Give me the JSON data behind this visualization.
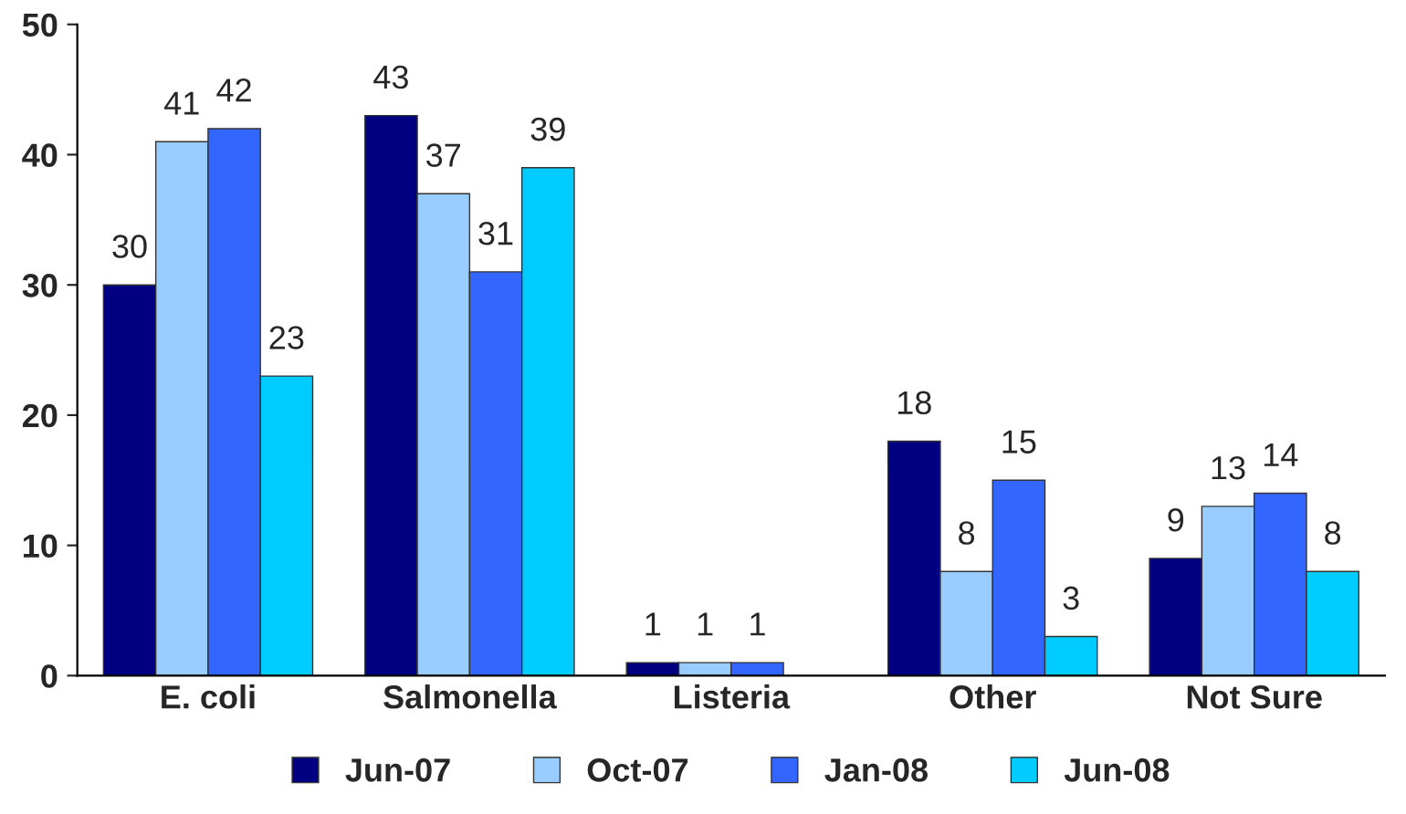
{
  "chart_data": {
    "type": "bar",
    "categories": [
      "E. coli",
      "Salmonella",
      "Listeria",
      "Other",
      "Not Sure"
    ],
    "series": [
      {
        "name": "Jun-07",
        "color": "#000080",
        "values": [
          30,
          43,
          1,
          18,
          9
        ]
      },
      {
        "name": "Oct-07",
        "color": "#99ccff",
        "values": [
          41,
          37,
          1,
          8,
          13
        ]
      },
      {
        "name": "Jan-08",
        "color": "#3366ff",
        "values": [
          42,
          31,
          1,
          15,
          14
        ]
      },
      {
        "name": "Jun-08",
        "color": "#00ccff",
        "values": [
          23,
          39,
          null,
          3,
          8
        ]
      }
    ],
    "ylim": [
      0,
      50
    ],
    "yticks": [
      0,
      10,
      20,
      30,
      40,
      50
    ],
    "data_labels": true,
    "grid": false,
    "legend": "bottom"
  }
}
